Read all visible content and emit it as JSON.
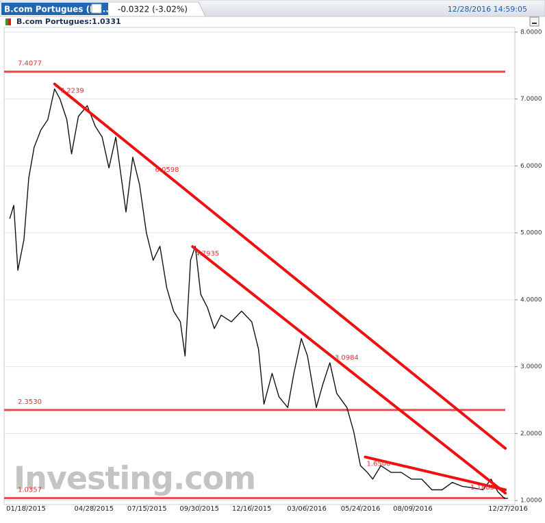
{
  "chart_data": {
    "type": "line",
    "tab_title": "B.com Portugues (Di...",
    "change": "-0.0322 (-3.02%)",
    "timestamp": "12/28/2016 14:59:05",
    "watermark": "Investing.com",
    "series": [
      {
        "name": "B.com Portugues:1.0331",
        "color": "#111111",
        "x": [
          "12/25/2014",
          "12/31/2014",
          "01/06/2015",
          "01/15/2015",
          "01/22/2015",
          "01/30/2015",
          "02/09/2015",
          "02/19/2015",
          "03/01/2015",
          "03/09/2015",
          "03/19/2015",
          "03/26/2015",
          "04/05/2015",
          "04/18/2015",
          "04/30/2015",
          "05/10/2015",
          "05/20/2015",
          "05/30/2015",
          "06/14/2015",
          "06/24/2015",
          "07/04/2015",
          "07/14/2015",
          "07/24/2015",
          "08/03/2015",
          "08/13/2015",
          "08/23/2015",
          "09/02/2015",
          "09/09/2015",
          "09/17/2015",
          "09/24/2015",
          "10/02/2015",
          "10/12/2015",
          "10/22/2015",
          "11/01/2015",
          "11/16/2015",
          "12/01/2015",
          "12/16/2015",
          "12/26/2015",
          "01/03/2016",
          "01/15/2016",
          "01/25/2016",
          "02/07/2016",
          "02/16/2016",
          "02/27/2016",
          "03/07/2016",
          "03/20/2016",
          "03/30/2016",
          "04/09/2016",
          "04/19/2016",
          "05/04/2016",
          "05/14/2016",
          "05/24/2016",
          "06/03/2016",
          "06/11/2016",
          "06/23/2016",
          "07/08/2016",
          "07/23/2016",
          "08/07/2016",
          "08/22/2016",
          "09/06/2016",
          "09/21/2016",
          "10/06/2016",
          "10/21/2016",
          "11/05/2016",
          "11/20/2016",
          "12/02/2016",
          "12/12/2016",
          "12/22/2016",
          "12/27/2016"
        ],
        "values": [
          5.21,
          5.41,
          4.44,
          4.9,
          5.82,
          6.28,
          6.54,
          6.69,
          7.15,
          7.0,
          6.69,
          6.18,
          6.74,
          6.9,
          6.59,
          6.43,
          5.97,
          6.43,
          5.31,
          6.13,
          5.72,
          5.0,
          4.59,
          4.8,
          4.18,
          3.83,
          3.67,
          3.16,
          4.59,
          4.8,
          4.08,
          3.88,
          3.57,
          3.77,
          3.67,
          3.83,
          3.67,
          3.26,
          2.44,
          2.9,
          2.55,
          2.39,
          2.9,
          3.42,
          3.16,
          2.39,
          2.75,
          3.06,
          2.6,
          2.39,
          2.03,
          1.52,
          1.42,
          1.32,
          1.52,
          1.42,
          1.42,
          1.32,
          1.32,
          1.16,
          1.16,
          1.27,
          1.21,
          1.19,
          1.16,
          1.32,
          1.13,
          1.03,
          1.0331
        ]
      }
    ],
    "levels": [
      {
        "value": 7.4077,
        "label": "7.4077",
        "color": "#ee3338"
      },
      {
        "value": 2.353,
        "label": "2.3530",
        "color": "#ee3338"
      },
      {
        "value": 1.0357,
        "label": "1.0357",
        "color": "#ee3338"
      }
    ],
    "trend_lines": [
      {
        "start_date": "03/01/2015",
        "start_value": 7.2239,
        "end_date": "12/23/2016",
        "end_value": 1.78,
        "labels": [
          "7.2239",
          "6.0598"
        ],
        "color": "#ee1111"
      },
      {
        "start_date": "09/20/2015",
        "start_value": 4.7935,
        "end_date": "12/23/2016",
        "end_value": 1.11,
        "labels": [
          "4.7935",
          "3.0984"
        ],
        "color": "#ee1111"
      },
      {
        "start_date": "05/31/2016",
        "start_value": 1.65,
        "end_date": "12/23/2016",
        "end_value": 1.16,
        "labels": [
          "1.6500",
          "1.1883"
        ],
        "color": "#ee1111"
      }
    ],
    "ylim": [
      0.94,
      8.07
    ],
    "yticks": [
      {
        "value": 1,
        "label": "1.0000"
      },
      {
        "value": 2,
        "label": "2.0000"
      },
      {
        "value": 3,
        "label": "3.0000"
      },
      {
        "value": 4,
        "label": "4.0000"
      },
      {
        "value": 5,
        "label": "5.0000"
      },
      {
        "value": 6,
        "label": "6.0000"
      },
      {
        "value": 7,
        "label": "7.0000"
      },
      {
        "value": 8,
        "label": "8.0000"
      }
    ],
    "xticks": [
      "01/18/2015",
      "04/28/2015",
      "07/15/2015",
      "09/30/2015",
      "12/16/2015",
      "03/06/2016",
      "05/24/2016",
      "08/09/2016",
      "12/27/2016"
    ],
    "grid": true
  }
}
